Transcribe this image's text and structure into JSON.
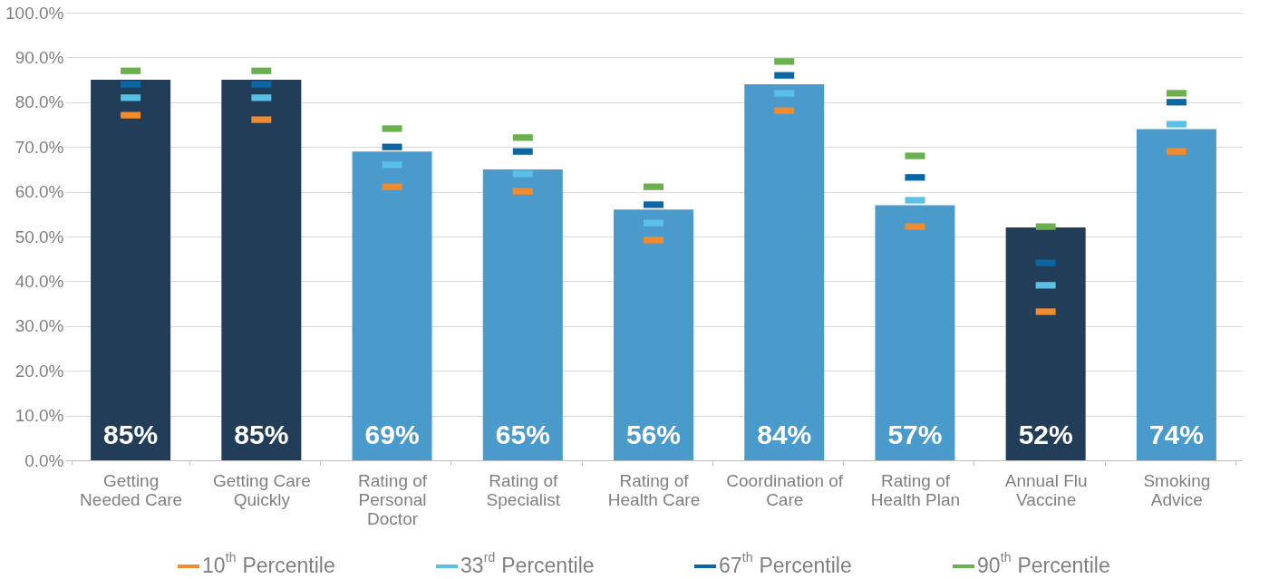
{
  "chart_data": {
    "type": "bar",
    "categories": [
      "Getting\nNeeded Care",
      "Getting Care\nQuickly",
      "Rating of\nPersonal\nDoctor",
      "Rating of\nSpecialist",
      "Rating of\nHealth Care",
      "Coordination of\nCare",
      "Rating of\nHealth Plan",
      "Annual Flu\nVaccine",
      "Smoking\nAdvice"
    ],
    "values": [
      85,
      85,
      69,
      65,
      56,
      84,
      57,
      52,
      74
    ],
    "colors": [
      "#223d57",
      "#223d57",
      "#4a9bcb",
      "#4a9bcb",
      "#4a9bcb",
      "#4a9bcb",
      "#4a9bcb",
      "#223d57",
      "#4a9bcb"
    ],
    "value_labels": [
      "85%",
      "85%",
      "69%",
      "65%",
      "56%",
      "84%",
      "57%",
      "52%",
      "74%"
    ],
    "series": [
      {
        "name": "10$^{th}$ Percentile",
        "type": "scatter",
        "color": "#f28a2e",
        "values": [
          77.1,
          76.1,
          61.1,
          60.1,
          49.2,
          78.1,
          52.2,
          33.2,
          69.0
        ]
      },
      {
        "name": "33$^{rd}$ Percentile",
        "type": "scatter",
        "color": "#5bc0e6",
        "values": [
          81.0,
          81.0,
          66.0,
          64.0,
          53.0,
          82.0,
          58.1,
          39.1,
          75.1
        ]
      },
      {
        "name": "67$^{th}$ Percentile",
        "type": "scatter",
        "color": "#0a67a3",
        "values": [
          84.0,
          84.0,
          70.0,
          69.0,
          57.1,
          86.0,
          63.2,
          44.1,
          80.0
        ]
      },
      {
        "name": "90$^{th}$ Percentile",
        "type": "scatter",
        "color": "#6ab04c",
        "values": [
          87.0,
          87.0,
          74.1,
          72.1,
          61.1,
          89.1,
          68.0,
          52.2,
          82.0
        ]
      }
    ],
    "ylim": [
      0,
      100
    ],
    "yticks": [
      {
        "value": 0,
        "label": "0.0%"
      },
      {
        "value": 10,
        "label": "10.0%"
      },
      {
        "value": 20,
        "label": "20.0%"
      },
      {
        "value": 30,
        "label": "30.0%"
      },
      {
        "value": 40,
        "label": "40.0%"
      },
      {
        "value": 50,
        "label": "50.0%"
      },
      {
        "value": 60,
        "label": "60.0%"
      },
      {
        "value": 70,
        "label": "70.0%"
      },
      {
        "value": 80,
        "label": "80.0%"
      },
      {
        "value": 90,
        "label": "90.0%"
      },
      {
        "value": 100,
        "label": "100.0%"
      }
    ],
    "grid": "y",
    "legend": "bottom"
  }
}
